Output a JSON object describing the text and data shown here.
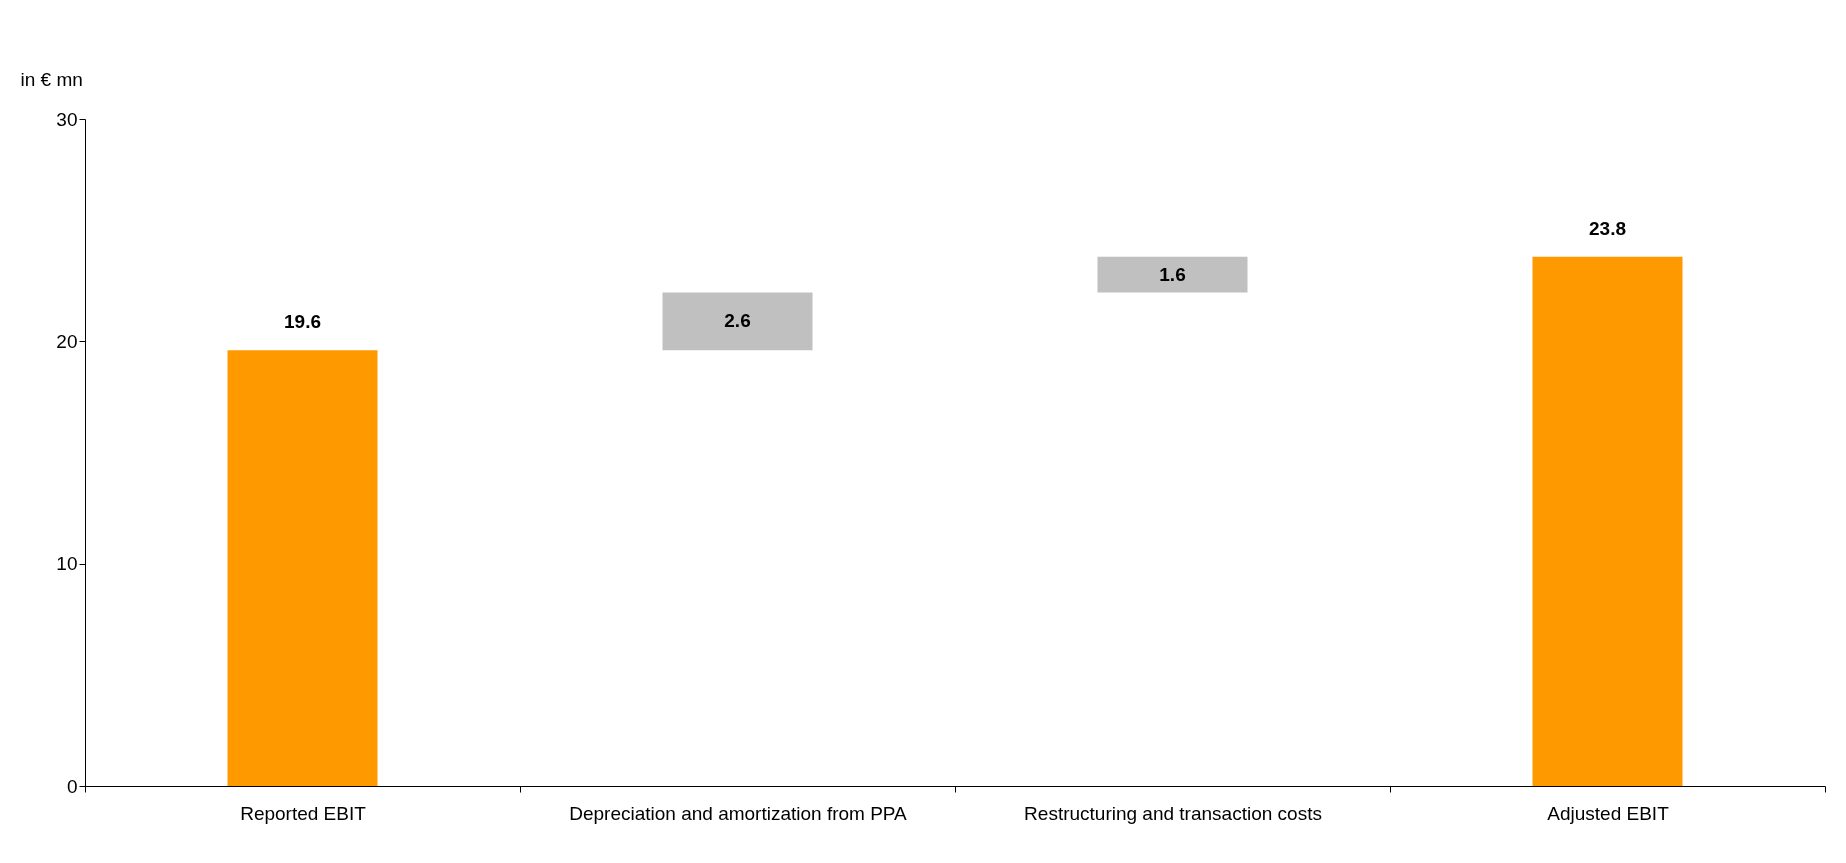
{
  "chart_data": {
    "type": "bar",
    "ylabel": "in € mn",
    "categories": [
      "Reported EBIT",
      "Depreciation and amortization from PPA",
      "Restructuring and transaction costs",
      "Adjusted EBIT"
    ],
    "values": [
      19.6,
      2.6,
      1.6,
      23.8
    ],
    "base": [
      0,
      19.6,
      22.2,
      0
    ],
    "colors": [
      "#ff9900",
      "#c0c0c0",
      "#c0c0c0",
      "#ff9900"
    ],
    "ylim": [
      0,
      30
    ],
    "yticks": [
      0,
      10,
      20,
      30
    ],
    "grid": false,
    "data_labels": true
  }
}
